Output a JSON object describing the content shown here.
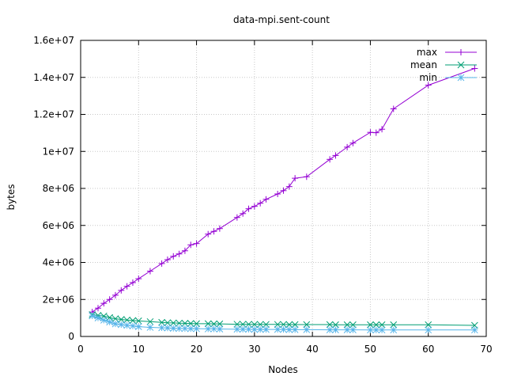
{
  "chart_data": {
    "type": "line",
    "title": "data-mpi.sent-count",
    "xlabel": "Nodes",
    "ylabel": "bytes",
    "xlim": [
      0,
      70
    ],
    "ylim": [
      0,
      16000000
    ],
    "grid": true,
    "legend_position": "top-right",
    "x_ticks": [
      0,
      10,
      20,
      30,
      40,
      50,
      60,
      70
    ],
    "x_tick_labels": [
      "0",
      "10",
      "20",
      "30",
      "40",
      "50",
      "60",
      "70"
    ],
    "y_ticks": [
      0,
      2000000,
      4000000,
      6000000,
      8000000,
      10000000,
      12000000,
      14000000,
      16000000
    ],
    "y_tick_labels": [
      "0",
      "2e+06",
      "4e+06",
      "6e+06",
      "8e+06",
      "1e+07",
      "1.2e+07",
      "1.4e+07",
      "1.6e+07"
    ],
    "series": [
      {
        "name": "max",
        "color": "#9400d3",
        "marker": "plus",
        "points": [
          [
            2,
            1320000
          ],
          [
            3,
            1530000
          ],
          [
            4,
            1790000
          ],
          [
            5,
            2000000
          ],
          [
            6,
            2230000
          ],
          [
            7,
            2490000
          ],
          [
            8,
            2710000
          ],
          [
            9,
            2910000
          ],
          [
            10,
            3120000
          ],
          [
            12,
            3530000
          ],
          [
            14,
            3940000
          ],
          [
            15,
            4150000
          ],
          [
            16,
            4330000
          ],
          [
            17,
            4460000
          ],
          [
            18,
            4630000
          ],
          [
            19,
            4950000
          ],
          [
            20,
            5020000
          ],
          [
            22,
            5530000
          ],
          [
            23,
            5680000
          ],
          [
            24,
            5830000
          ],
          [
            27,
            6430000
          ],
          [
            28,
            6640000
          ],
          [
            29,
            6900000
          ],
          [
            30,
            7030000
          ],
          [
            31,
            7200000
          ],
          [
            32,
            7410000
          ],
          [
            34,
            7700000
          ],
          [
            35,
            7880000
          ],
          [
            36,
            8100000
          ],
          [
            37,
            8550000
          ],
          [
            39,
            8630000
          ],
          [
            43,
            9570000
          ],
          [
            44,
            9780000
          ],
          [
            46,
            10230000
          ],
          [
            47,
            10450000
          ],
          [
            50,
            11030000
          ],
          [
            51,
            11010000
          ],
          [
            52,
            11200000
          ],
          [
            54,
            12300000
          ],
          [
            60,
            13580000
          ],
          [
            68,
            14480000
          ]
        ]
      },
      {
        "name": "mean",
        "color": "#009e73",
        "marker": "cross",
        "points": [
          [
            2,
            1180000
          ],
          [
            3,
            1140000
          ],
          [
            4,
            1100000
          ],
          [
            5,
            1020000
          ],
          [
            6,
            960000
          ],
          [
            7,
            920000
          ],
          [
            8,
            890000
          ],
          [
            9,
            860000
          ],
          [
            10,
            840000
          ],
          [
            12,
            800000
          ],
          [
            14,
            760000
          ],
          [
            15,
            740000
          ],
          [
            16,
            730000
          ],
          [
            17,
            720000
          ],
          [
            18,
            710000
          ],
          [
            19,
            700000
          ],
          [
            20,
            690000
          ],
          [
            22,
            690000
          ],
          [
            23,
            680000
          ],
          [
            24,
            680000
          ],
          [
            27,
            660000
          ],
          [
            28,
            660000
          ],
          [
            29,
            660000
          ],
          [
            30,
            650000
          ],
          [
            31,
            650000
          ],
          [
            32,
            650000
          ],
          [
            34,
            650000
          ],
          [
            35,
            650000
          ],
          [
            36,
            640000
          ],
          [
            37,
            640000
          ],
          [
            39,
            640000
          ],
          [
            43,
            640000
          ],
          [
            44,
            630000
          ],
          [
            46,
            630000
          ],
          [
            47,
            630000
          ],
          [
            50,
            630000
          ],
          [
            51,
            630000
          ],
          [
            52,
            630000
          ],
          [
            54,
            630000
          ],
          [
            60,
            630000
          ],
          [
            68,
            600000
          ]
        ]
      },
      {
        "name": "min",
        "color": "#56b4e9",
        "marker": "star",
        "points": [
          [
            2,
            1110000
          ],
          [
            3,
            1000000
          ],
          [
            4,
            880000
          ],
          [
            5,
            780000
          ],
          [
            6,
            680000
          ],
          [
            7,
            640000
          ],
          [
            8,
            600000
          ],
          [
            9,
            570000
          ],
          [
            10,
            530000
          ],
          [
            12,
            490000
          ],
          [
            14,
            470000
          ],
          [
            15,
            460000
          ],
          [
            16,
            440000
          ],
          [
            17,
            430000
          ],
          [
            18,
            430000
          ],
          [
            19,
            420000
          ],
          [
            20,
            420000
          ],
          [
            22,
            410000
          ],
          [
            23,
            410000
          ],
          [
            24,
            400000
          ],
          [
            27,
            390000
          ],
          [
            28,
            390000
          ],
          [
            29,
            390000
          ],
          [
            30,
            380000
          ],
          [
            31,
            380000
          ],
          [
            32,
            380000
          ],
          [
            34,
            380000
          ],
          [
            35,
            380000
          ],
          [
            36,
            370000
          ],
          [
            37,
            370000
          ],
          [
            39,
            370000
          ],
          [
            43,
            360000
          ],
          [
            44,
            360000
          ],
          [
            46,
            360000
          ],
          [
            47,
            360000
          ],
          [
            50,
            350000
          ],
          [
            51,
            350000
          ],
          [
            52,
            350000
          ],
          [
            54,
            350000
          ],
          [
            60,
            350000
          ],
          [
            68,
            350000
          ]
        ]
      }
    ]
  }
}
